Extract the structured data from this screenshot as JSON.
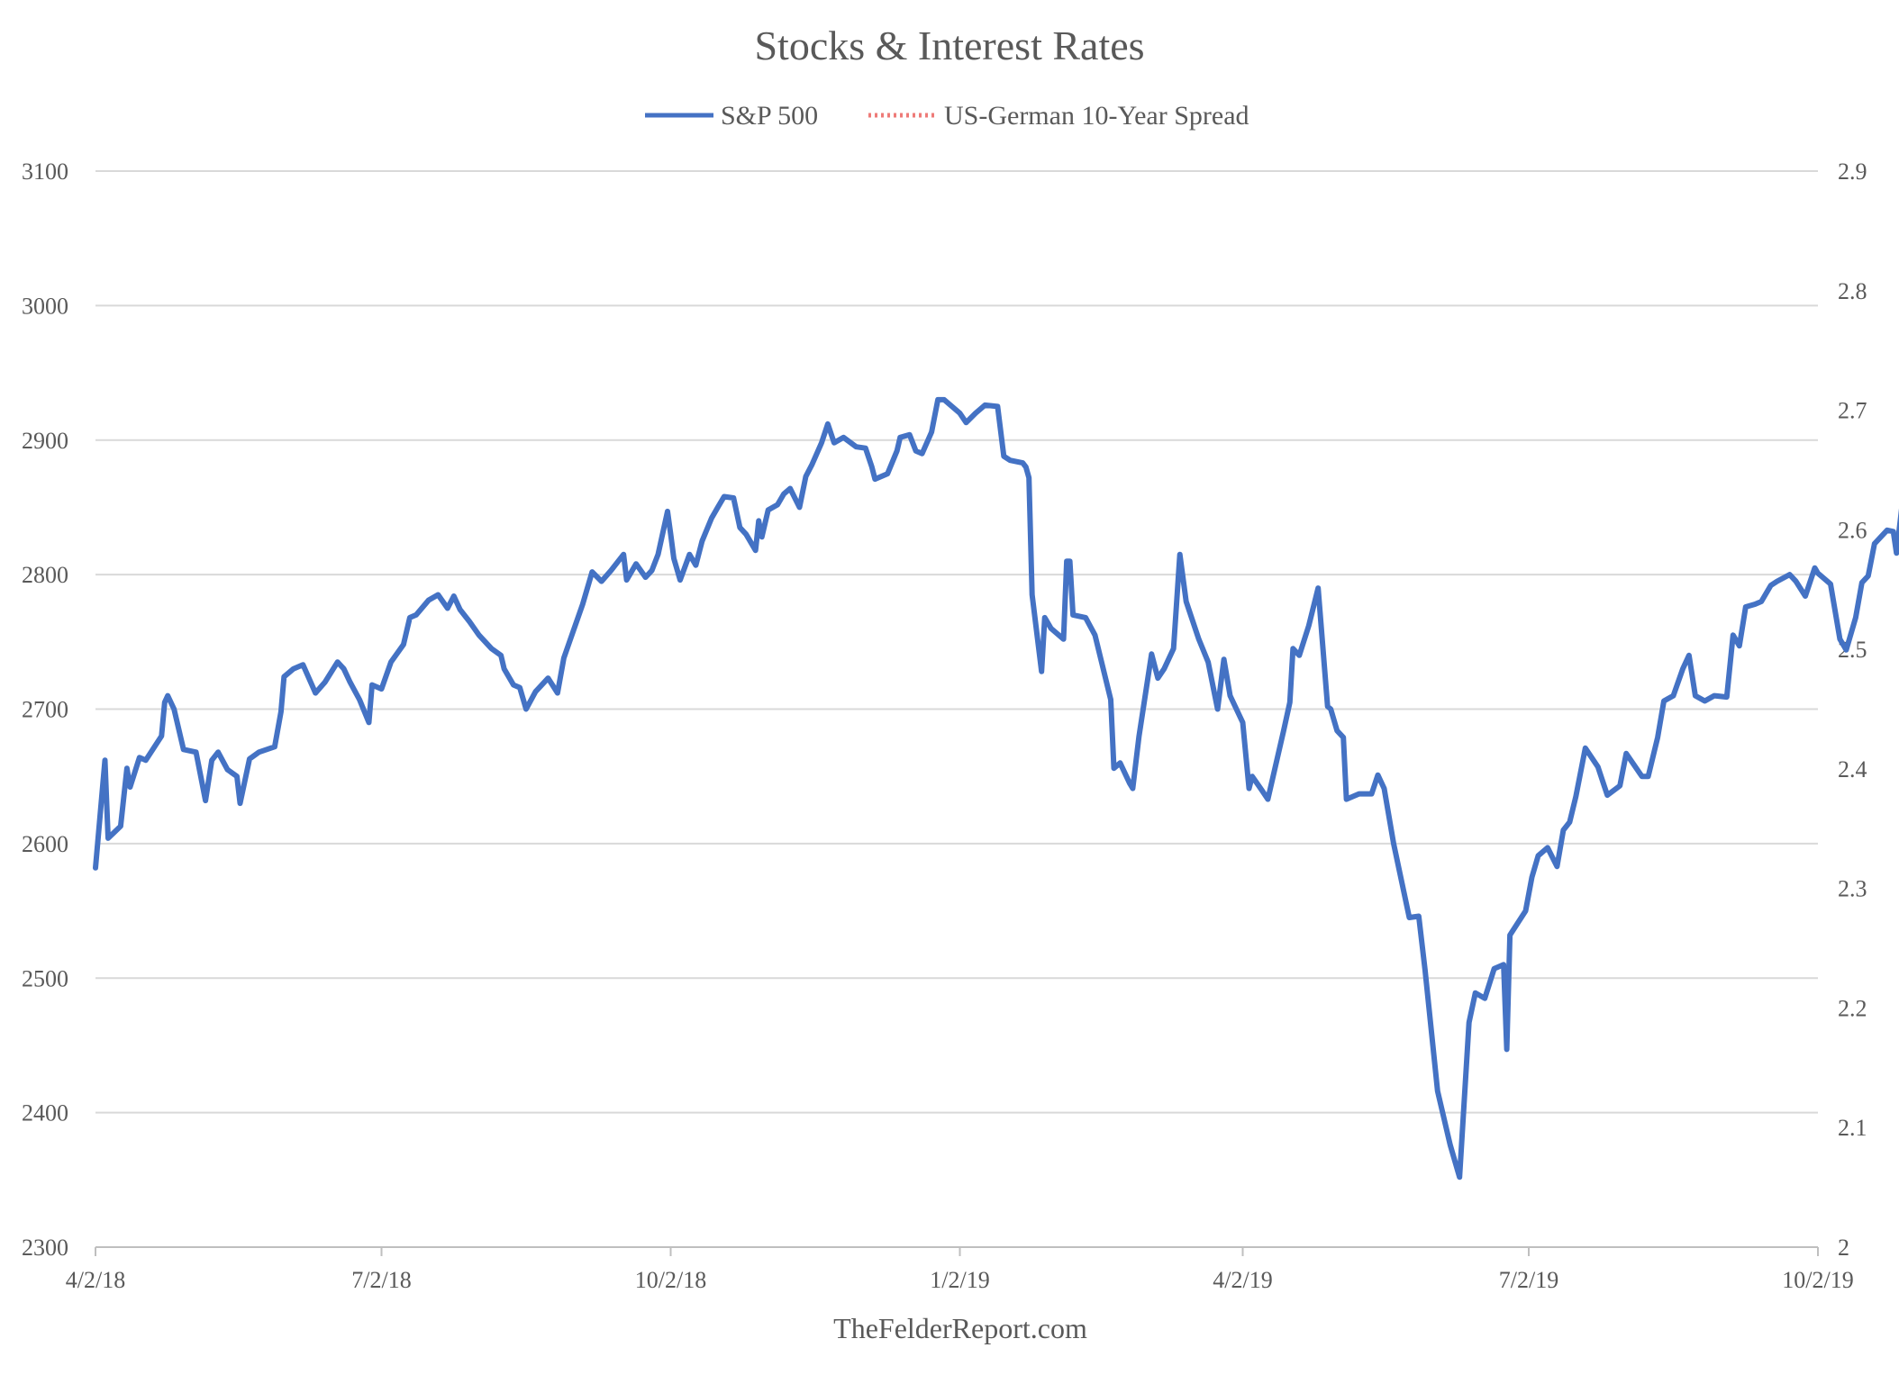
{
  "chart_data": {
    "type": "line",
    "title": "Stocks & Interest Rates",
    "footer": "TheFelderReport.com",
    "legend_position": "top-center",
    "grid": true,
    "x_ticks": [
      "4/2/18",
      "7/2/18",
      "10/2/18",
      "1/2/19",
      "4/2/19",
      "7/2/19",
      "10/2/19"
    ],
    "x_range": [
      "2018-04-02",
      "2019-10-02"
    ],
    "y_left": {
      "ticks": [
        "2300",
        "2400",
        "2500",
        "2600",
        "2700",
        "2800",
        "2900",
        "3000",
        "3100"
      ],
      "range": [
        2300,
        3100
      ]
    },
    "y_right": {
      "ticks": [
        "2",
        "2.1",
        "2.2",
        "2.3",
        "2.4",
        "2.5",
        "2.6",
        "2.7",
        "2.8",
        "2.9"
      ],
      "range": [
        2.0,
        2.9
      ]
    },
    "series": [
      {
        "name": "S&P 500",
        "axis": "left",
        "color": "#4472C4",
        "style": "solid",
        "points": [
          [
            "2018-04-02",
            2582
          ],
          [
            "2018-04-05",
            2662
          ],
          [
            "2018-04-06",
            2604
          ],
          [
            "2018-04-10",
            2613
          ],
          [
            "2018-04-12",
            2656
          ],
          [
            "2018-04-13",
            2642
          ],
          [
            "2018-04-16",
            2664
          ],
          [
            "2018-04-18",
            2662
          ],
          [
            "2018-04-23",
            2680
          ],
          [
            "2018-04-24",
            2705
          ],
          [
            "2018-04-25",
            2710
          ],
          [
            "2018-04-27",
            2700
          ],
          [
            "2018-04-30",
            2670
          ],
          [
            "2018-05-04",
            2668
          ],
          [
            "2018-05-07",
            2632
          ],
          [
            "2018-05-09",
            2662
          ],
          [
            "2018-05-11",
            2668
          ],
          [
            "2018-05-14",
            2655
          ],
          [
            "2018-05-17",
            2650
          ],
          [
            "2018-05-18",
            2630
          ],
          [
            "2018-05-21",
            2663
          ],
          [
            "2018-05-24",
            2668
          ],
          [
            "2018-05-29",
            2672
          ],
          [
            "2018-05-31",
            2698
          ],
          [
            "2018-06-01",
            2724
          ],
          [
            "2018-06-04",
            2730
          ],
          [
            "2018-06-07",
            2733
          ],
          [
            "2018-06-11",
            2712
          ],
          [
            "2018-06-14",
            2720
          ],
          [
            "2018-06-18",
            2735
          ],
          [
            "2018-06-20",
            2730
          ],
          [
            "2018-06-22",
            2720
          ],
          [
            "2018-06-25",
            2707
          ],
          [
            "2018-06-28",
            2690
          ],
          [
            "2018-06-29",
            2718
          ],
          [
            "2018-07-02",
            2715
          ],
          [
            "2018-07-05",
            2735
          ],
          [
            "2018-07-09",
            2748
          ],
          [
            "2018-07-11",
            2768
          ],
          [
            "2018-07-13",
            2770
          ],
          [
            "2018-07-17",
            2781
          ],
          [
            "2018-07-20",
            2785
          ],
          [
            "2018-07-23",
            2775
          ],
          [
            "2018-07-25",
            2784
          ],
          [
            "2018-07-27",
            2774
          ],
          [
            "2018-07-30",
            2765
          ],
          [
            "2018-08-02",
            2755
          ],
          [
            "2018-08-06",
            2745
          ],
          [
            "2018-08-09",
            2740
          ],
          [
            "2018-08-10",
            2730
          ],
          [
            "2018-08-13",
            2718
          ],
          [
            "2018-08-15",
            2716
          ],
          [
            "2018-08-17",
            2700
          ],
          [
            "2018-08-20",
            2713
          ],
          [
            "2018-08-24",
            2723
          ],
          [
            "2018-08-27",
            2712
          ],
          [
            "2018-08-29",
            2738
          ],
          [
            "2018-09-04",
            2778
          ],
          [
            "2018-09-07",
            2802
          ],
          [
            "2018-09-10",
            2795
          ],
          [
            "2018-09-13",
            2803
          ],
          [
            "2018-09-17",
            2815
          ],
          [
            "2018-09-18",
            2796
          ],
          [
            "2018-09-21",
            2808
          ],
          [
            "2018-09-24",
            2798
          ],
          [
            "2018-09-26",
            2803
          ],
          [
            "2018-09-28",
            2815
          ],
          [
            "2018-10-01",
            2847
          ],
          [
            "2018-10-02",
            2830
          ],
          [
            "2018-10-03",
            2812
          ],
          [
            "2018-10-05",
            2796
          ],
          [
            "2018-10-08",
            2815
          ],
          [
            "2018-10-10",
            2807
          ],
          [
            "2018-10-12",
            2825
          ],
          [
            "2018-10-15",
            2842
          ],
          [
            "2018-10-17",
            2850
          ],
          [
            "2018-10-19",
            2858
          ],
          [
            "2018-10-22",
            2857
          ],
          [
            "2018-10-24",
            2835
          ],
          [
            "2018-10-26",
            2830
          ],
          [
            "2018-10-29",
            2818
          ],
          [
            "2018-10-30",
            2840
          ],
          [
            "2018-10-31",
            2828
          ],
          [
            "2018-11-02",
            2848
          ],
          [
            "2018-11-05",
            2852
          ],
          [
            "2018-11-07",
            2860
          ],
          [
            "2018-11-09",
            2864
          ],
          [
            "2018-11-12",
            2850
          ],
          [
            "2018-11-14",
            2873
          ],
          [
            "2018-11-16",
            2882
          ],
          [
            "2018-11-19",
            2898
          ],
          [
            "2018-11-21",
            2912
          ],
          [
            "2018-11-23",
            2898
          ],
          [
            "2018-11-26",
            2902
          ],
          [
            "2018-11-30",
            2895
          ],
          [
            "2018-12-03",
            2894
          ],
          [
            "2018-12-05",
            2880
          ],
          [
            "2018-12-06",
            2871
          ],
          [
            "2018-12-10",
            2875
          ],
          [
            "2018-12-13",
            2892
          ],
          [
            "2018-12-14",
            2902
          ],
          [
            "2018-12-17",
            2904
          ],
          [
            "2018-12-19",
            2892
          ],
          [
            "2018-12-21",
            2890
          ],
          [
            "2018-12-24",
            2906
          ],
          [
            "2018-12-26",
            2930
          ],
          [
            "2018-12-28",
            2930
          ],
          [
            "2019-01-02",
            2920
          ],
          [
            "2019-01-04",
            2913
          ],
          [
            "2019-01-07",
            2920
          ],
          [
            "2019-01-10",
            2926
          ],
          [
            "2019-01-14",
            2925
          ],
          [
            "2019-01-16",
            2888
          ],
          [
            "2019-01-18",
            2885
          ],
          [
            "2019-01-22",
            2883
          ],
          [
            "2019-01-23",
            2880
          ],
          [
            "2019-01-24",
            2872
          ],
          [
            "2019-01-25",
            2785
          ],
          [
            "2019-01-28",
            2728
          ],
          [
            "2019-01-29",
            2768
          ],
          [
            "2019-01-31",
            2760
          ],
          [
            "2019-02-04",
            2752
          ],
          [
            "2019-02-05",
            2810
          ],
          [
            "2019-02-06",
            2810
          ],
          [
            "2019-02-07",
            2770
          ],
          [
            "2019-02-11",
            2768
          ],
          [
            "2019-02-14",
            2755
          ],
          [
            "2019-02-19",
            2707
          ],
          [
            "2019-02-20",
            2656
          ],
          [
            "2019-02-22",
            2660
          ],
          [
            "2019-02-25",
            2645
          ],
          [
            "2019-02-26",
            2641
          ],
          [
            "2019-02-28",
            2680
          ],
          [
            "2019-03-04",
            2741
          ],
          [
            "2019-03-06",
            2723
          ],
          [
            "2019-03-08",
            2730
          ],
          [
            "2019-03-11",
            2745
          ],
          [
            "2019-03-13",
            2815
          ],
          [
            "2019-03-15",
            2780
          ],
          [
            "2019-03-19",
            2752
          ],
          [
            "2019-03-22",
            2735
          ],
          [
            "2019-03-25",
            2700
          ],
          [
            "2019-03-27",
            2737
          ],
          [
            "2019-03-29",
            2710
          ],
          [
            "2019-04-02",
            2690
          ],
          [
            "2019-04-04",
            2641
          ],
          [
            "2019-04-05",
            2650
          ],
          [
            "2019-04-08",
            2640
          ],
          [
            "2019-04-10",
            2633
          ],
          [
            "2019-04-15",
            2684
          ],
          [
            "2019-04-17",
            2705
          ],
          [
            "2019-04-18",
            2745
          ],
          [
            "2019-04-20",
            2740
          ],
          [
            "2019-04-23",
            2762
          ],
          [
            "2019-04-26",
            2790
          ],
          [
            "2019-04-29",
            2702
          ],
          [
            "2019-04-30",
            2700
          ],
          [
            "2019-05-02",
            2684
          ],
          [
            "2019-05-04",
            2679
          ],
          [
            "2019-05-05",
            2633
          ],
          [
            "2019-05-09",
            2637
          ],
          [
            "2019-05-11",
            2637
          ],
          [
            "2019-05-13",
            2637
          ],
          [
            "2019-05-15",
            2651
          ],
          [
            "2019-05-17",
            2641
          ],
          [
            "2019-05-20",
            2600
          ],
          [
            "2019-05-25",
            2545
          ],
          [
            "2019-05-28",
            2546
          ],
          [
            "2019-05-30",
            2506
          ],
          [
            "2019-06-03",
            2416
          ],
          [
            "2019-06-07",
            2376
          ],
          [
            "2019-06-10",
            2352
          ],
          [
            "2019-06-13",
            2467
          ],
          [
            "2019-06-15",
            2489
          ],
          [
            "2019-06-18",
            2485
          ],
          [
            "2019-06-21",
            2507
          ],
          [
            "2019-06-24",
            2510
          ],
          [
            "2019-06-25",
            2447
          ],
          [
            "2019-06-26",
            2532
          ],
          [
            "2019-07-01",
            2550
          ],
          [
            "2019-07-03",
            2575
          ],
          [
            "2019-07-05",
            2591
          ],
          [
            "2019-07-08",
            2597
          ],
          [
            "2019-07-11",
            2583
          ],
          [
            "2019-07-13",
            2610
          ],
          [
            "2019-07-15",
            2616
          ],
          [
            "2019-07-17",
            2635
          ],
          [
            "2019-07-20",
            2671
          ],
          [
            "2019-07-24",
            2657
          ],
          [
            "2019-07-27",
            2636
          ],
          [
            "2019-07-31",
            2643
          ],
          [
            "2019-08-02",
            2667
          ],
          [
            "2019-08-07",
            2650
          ],
          [
            "2019-08-09",
            2650
          ],
          [
            "2019-08-12",
            2679
          ],
          [
            "2019-08-14",
            2706
          ],
          [
            "2019-08-17",
            2710
          ],
          [
            "2019-08-20",
            2730
          ],
          [
            "2019-08-22",
            2740
          ],
          [
            "2019-08-24",
            2710
          ],
          [
            "2019-08-27",
            2706
          ],
          [
            "2019-08-30",
            2710
          ],
          [
            "2019-09-03",
            2709
          ],
          [
            "2019-09-05",
            2755
          ],
          [
            "2019-09-07",
            2747
          ],
          [
            "2019-09-09",
            2776
          ],
          [
            "2019-09-12",
            2778
          ],
          [
            "2019-09-14",
            2780
          ],
          [
            "2019-09-17",
            2792
          ],
          [
            "2019-09-19",
            2795
          ],
          [
            "2019-09-23",
            2800
          ],
          [
            "2019-09-25",
            2795
          ],
          [
            "2019-09-28",
            2784
          ],
          [
            "2019-10-01",
            2805
          ],
          [
            "2019-10-02",
            2801
          ],
          [
            "2019-10-06",
            2793
          ],
          [
            "2019-10-09",
            2752
          ],
          [
            "2019-10-11",
            2744
          ],
          [
            "2019-10-14",
            2768
          ],
          [
            "2019-10-16",
            2794
          ],
          [
            "2019-10-18",
            2799
          ],
          [
            "2019-10-20",
            2823
          ],
          [
            "2019-10-24",
            2833
          ],
          [
            "2019-10-26",
            2832
          ],
          [
            "2019-10-27",
            2816
          ],
          [
            "2019-10-29",
            2856
          ]
        ]
      },
      {
        "name": "US-German 10-Year Spread",
        "axis": "right",
        "color": "#EE7B78",
        "style": "dotted",
        "points": []
      }
    ]
  }
}
